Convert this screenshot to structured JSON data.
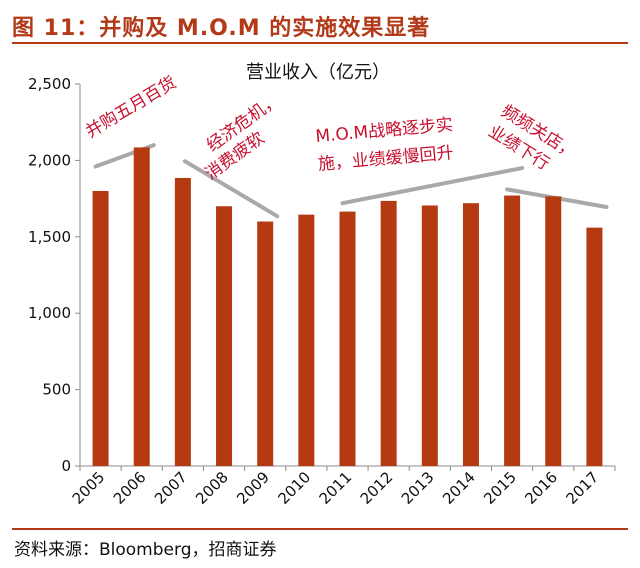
{
  "figure": {
    "title": "图 11：并购及 M.O.M 的实施效果显著",
    "source": "资料来源：Bloomberg，招商证券"
  },
  "colors": {
    "bar": "#b53a12",
    "accent": "#b33a18",
    "annotation": "#c8102e",
    "trend_line": "#a9a9a9"
  },
  "chart_data": {
    "type": "bar",
    "title": "营业收入（亿元）",
    "categories": [
      "2005",
      "2006",
      "2007",
      "2008",
      "2009",
      "2010",
      "2011",
      "2012",
      "2013",
      "2014",
      "2015",
      "2016",
      "2017"
    ],
    "values": [
      1800,
      2085,
      1885,
      1700,
      1600,
      1645,
      1665,
      1735,
      1705,
      1720,
      1770,
      1765,
      1560
    ],
    "ylim": [
      0,
      2500
    ],
    "yticks": [
      0,
      500,
      1000,
      1500,
      2000,
      2500
    ],
    "ytick_labels": [
      "0",
      "500",
      "1,000",
      "1,500",
      "2,000",
      "2,500"
    ],
    "grid": false,
    "legend": "none",
    "annotations": [
      {
        "id": "merger",
        "lines": [
          "并购五月百货"
        ]
      },
      {
        "id": "crisis",
        "lines": [
          "经济危机，",
          "消费疲软"
        ]
      },
      {
        "id": "mom",
        "lines": [
          "M.O.M战略逐步实",
          "施，业绩缓慢回升"
        ]
      },
      {
        "id": "closures",
        "lines": [
          "频频关店，",
          "业绩下行"
        ]
      }
    ],
    "trend_lines": [
      {
        "from": [
          "2005",
          1960
        ],
        "to": [
          "2006",
          2100
        ]
      },
      {
        "from": [
          "2007",
          1995
        ],
        "to": [
          "2009",
          1635
        ]
      },
      {
        "from": [
          "2011",
          1720
        ],
        "to": [
          "2015",
          1950
        ]
      },
      {
        "from": [
          "2015",
          1810
        ],
        "to": [
          "2017",
          1695
        ]
      }
    ]
  }
}
